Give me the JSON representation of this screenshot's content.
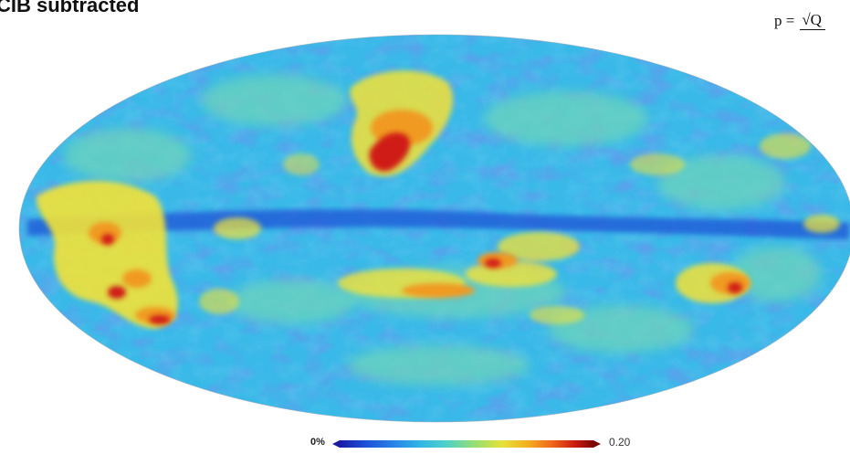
{
  "figure": {
    "title": "CIB subtracted",
    "formula": {
      "lhs": "p =",
      "numerator": "√Q"
    },
    "colorbar": {
      "min_label": "0%",
      "max_label": "0.20"
    },
    "colors": {
      "low": "#1d4fd8",
      "mid_low": "#31b7e6",
      "mid": "#4fd0c8",
      "mid_high": "#e6e23a",
      "high": "#c81a10"
    }
  }
}
